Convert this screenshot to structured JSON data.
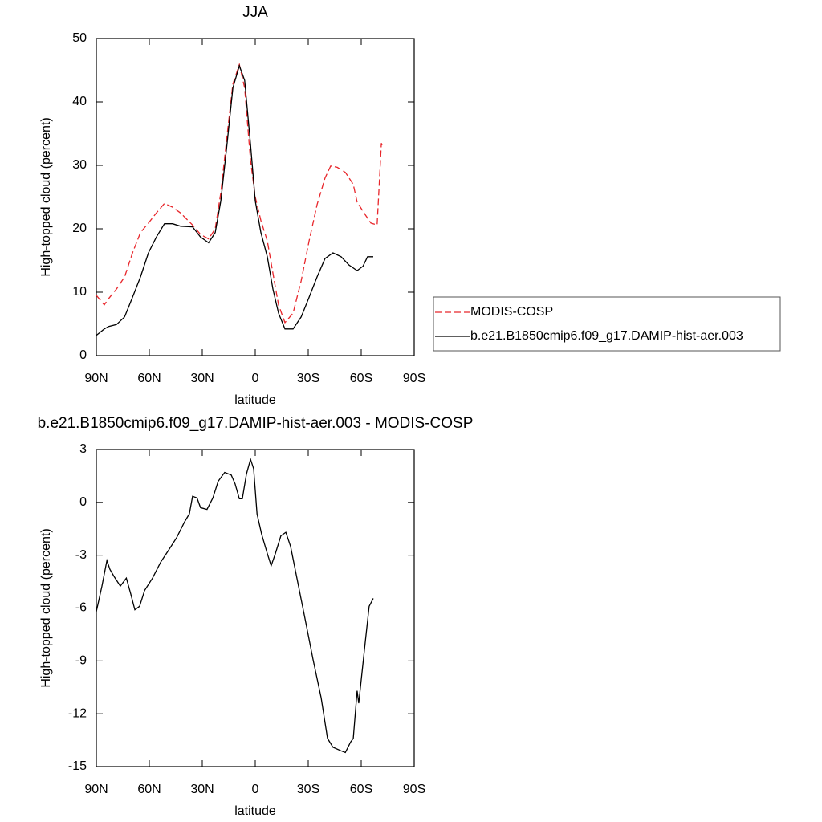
{
  "chart_data": [
    {
      "type": "line",
      "title": "JJA",
      "xlabel": "latitude",
      "ylabel": "High-topped cloud (percent)",
      "xlim": [
        90,
        -90
      ],
      "ylim": [
        0,
        50
      ],
      "xticks": [
        {
          "value": 90,
          "label": "90N"
        },
        {
          "value": 60,
          "label": "60N"
        },
        {
          "value": 30,
          "label": "30N"
        },
        0,
        {
          "value": -30,
          "label": "30S"
        },
        {
          "value": -60,
          "label": "60S"
        },
        {
          "value": -90,
          "label": "90S"
        }
      ],
      "yticks": [
        0,
        10,
        20,
        30,
        40,
        50
      ],
      "legend": "right",
      "series": [
        {
          "name": "MODIS-COSP",
          "color": "#e8262b",
          "dash": true,
          "x": [
            90,
            85.5,
            83,
            78.6,
            74,
            69.5,
            65,
            60.5,
            56,
            51.4,
            46.8,
            42.3,
            35.5,
            31,
            26.4,
            22.7,
            19.5,
            16,
            12.7,
            9,
            6,
            2.7,
            0,
            -3.2,
            -6.8,
            -10,
            -13.2,
            -16.8,
            -21.4,
            -26,
            -30.5,
            -35,
            -39.5,
            -42.7,
            -46.4,
            -51,
            -55.5,
            -57.7,
            -62.3,
            -65.5,
            -69,
            -71.4,
            -72.3
          ],
          "values": [
            9.5,
            8,
            9,
            10.5,
            12.4,
            16.2,
            19.4,
            20.9,
            22.5,
            24,
            23.4,
            22.5,
            20.6,
            19.1,
            18.4,
            20,
            25.7,
            34.6,
            42.8,
            45.9,
            42.2,
            30.8,
            25,
            21.3,
            18.1,
            13,
            8,
            5.2,
            6.7,
            11.8,
            18.1,
            23.8,
            28,
            29.9,
            29.7,
            28.9,
            27,
            24.2,
            22.2,
            20.9,
            20.6,
            33.5,
            32.7
          ]
        },
        {
          "name": "b.e21.B1850cmip6.f09_g17.DAMIP-hist-aer.003",
          "color": "#000000",
          "dash": false,
          "x": [
            90,
            85.5,
            83,
            78.6,
            74,
            69.5,
            65,
            60.5,
            56,
            51.4,
            46.8,
            42.3,
            35.5,
            31,
            26.4,
            22.7,
            19.5,
            16,
            12.7,
            9,
            6,
            2.7,
            0,
            -3.2,
            -6.8,
            -10,
            -13.2,
            -16.8,
            -21.4,
            -26,
            -30.5,
            -35,
            -39.5,
            -44,
            -48.6,
            -53,
            -57.7,
            -61,
            -63.6,
            -66.8
          ],
          "values": [
            3.2,
            4.2,
            4.6,
            4.9,
            6.1,
            9.2,
            12.4,
            16.2,
            18.7,
            20.8,
            20.8,
            20.4,
            20.3,
            18.7,
            17.8,
            19.4,
            24.4,
            33.3,
            42.2,
            45.7,
            43.4,
            33.3,
            24.4,
            19.4,
            15.6,
            10.5,
            6.7,
            4.2,
            4.2,
            6.1,
            9.2,
            12.4,
            15.3,
            16.2,
            15.6,
            14.3,
            13.4,
            14.1,
            15.6,
            15.6
          ]
        }
      ]
    },
    {
      "type": "line",
      "title": "b.e21.B1850cmip6.f09_g17.DAMIP-hist-aer.003 - MODIS-COSP",
      "xlabel": "latitude",
      "ylabel": "High-topped cloud (percent)",
      "xlim": [
        90,
        -90
      ],
      "ylim": [
        -15,
        3
      ],
      "xticks": [
        {
          "value": 90,
          "label": "90N"
        },
        {
          "value": 60,
          "label": "60N"
        },
        {
          "value": 30,
          "label": "30N"
        },
        0,
        {
          "value": -30,
          "label": "30S"
        },
        {
          "value": -60,
          "label": "60S"
        },
        {
          "value": -90,
          "label": "90S"
        }
      ],
      "yticks": [
        -15,
        -12,
        -9,
        -6,
        -3,
        0,
        3
      ],
      "series": [
        {
          "color": "#000000",
          "dash": false,
          "x": [
            90,
            86.8,
            84,
            82.3,
            80,
            76.4,
            73,
            70.5,
            68.2,
            65.5,
            62.7,
            58.2,
            53.6,
            49,
            44.5,
            40,
            37.3,
            35.5,
            33,
            31,
            27.3,
            24,
            21,
            17.3,
            13.6,
            11.4,
            9,
            7.3,
            5,
            2.7,
            0.9,
            -1,
            -3.6,
            -6.8,
            -9,
            -11.4,
            -14.5,
            -17.3,
            -20,
            -23.6,
            -28.2,
            -32.7,
            -37.3,
            -40.9,
            -44,
            -48.6,
            -51,
            -54,
            -55.5,
            -57.7,
            -58.6,
            -62.3,
            -64.5,
            -66.8
          ],
          "values": [
            -6.2,
            -4.75,
            -3.3,
            -3.8,
            -4.2,
            -4.75,
            -4.3,
            -5.2,
            -6.1,
            -5.9,
            -5,
            -4.3,
            -3.4,
            -2.7,
            -2,
            -1.1,
            -0.65,
            0.35,
            0.25,
            -0.3,
            -0.4,
            0.25,
            1.2,
            1.7,
            1.55,
            1.05,
            0.2,
            0.2,
            1.6,
            2.45,
            1.9,
            -0.65,
            -1.8,
            -2.9,
            -3.6,
            -2.9,
            -1.9,
            -1.7,
            -2.5,
            -4.3,
            -6.6,
            -8.9,
            -11.1,
            -13.4,
            -13.9,
            -14.1,
            -14.2,
            -13.6,
            -13.4,
            -10.7,
            -11.4,
            -7.9,
            -5.9,
            -5.45
          ]
        }
      ]
    }
  ]
}
